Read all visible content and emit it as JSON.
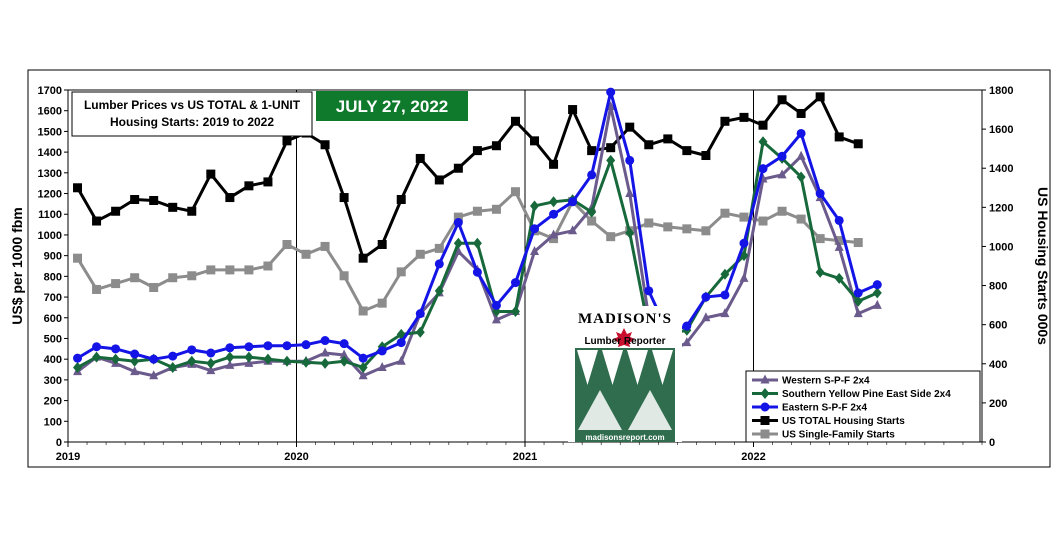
{
  "chart_data": {
    "type": "line",
    "title_lines": [
      "Lumber Prices vs US TOTAL & 1-UNIT",
      "Housing Starts:  2019 to 2022"
    ],
    "date_badge": "JULY 27, 2022",
    "ylabel_left": "US$ per 1000 fbm",
    "ylabel_right": "US Housing  Starts 000s",
    "ylim_left": [
      0,
      1700
    ],
    "ylim_right": [
      0,
      1800
    ],
    "yticks_left": [
      0,
      100,
      200,
      300,
      400,
      500,
      600,
      700,
      800,
      900,
      1000,
      1100,
      1200,
      1300,
      1400,
      1500,
      1600,
      1700
    ],
    "yticks_right": [
      0,
      200,
      400,
      600,
      800,
      1000,
      1200,
      1400,
      1600,
      1800
    ],
    "x_start_year": 2019,
    "x_end_year": 2023,
    "xticks": [
      "2019",
      "2020",
      "2021",
      "2022"
    ],
    "grid": false,
    "legend_position": "bottom-right",
    "series": [
      {
        "name": "Western S-P-F 2x4",
        "axis": "left",
        "color": "#6b5a8c",
        "marker": "triangle",
        "values": [
          340,
          410,
          380,
          340,
          320,
          360,
          375,
          345,
          370,
          380,
          390,
          390,
          390,
          430,
          420,
          320,
          360,
          390,
          620,
          720,
          920,
          830,
          590,
          630,
          920,
          1000,
          1020,
          1130,
          1620,
          1200,
          600,
          430,
          480,
          600,
          620,
          790,
          1270,
          1290,
          1380,
          1180,
          940,
          620,
          660
        ]
      },
      {
        "name": "Southern Yellow Pine East Side 2x4",
        "axis": "left",
        "color": "#17693b",
        "marker": "diamond",
        "values": [
          360,
          410,
          400,
          390,
          400,
          360,
          390,
          380,
          410,
          410,
          400,
          390,
          385,
          380,
          390,
          360,
          460,
          520,
          530,
          730,
          960,
          960,
          630,
          630,
          1140,
          1160,
          1170,
          1110,
          1360,
          1010,
          540,
          520,
          540,
          700,
          810,
          900,
          1450,
          1370,
          1280,
          820,
          790,
          680,
          720
        ]
      },
      {
        "name": "Eastern S-P-F 2x4",
        "axis": "left",
        "color": "#1414e6",
        "marker": "circle",
        "values": [
          405,
          460,
          450,
          425,
          400,
          415,
          445,
          430,
          455,
          460,
          465,
          465,
          470,
          490,
          475,
          405,
          440,
          480,
          620,
          860,
          1060,
          820,
          660,
          770,
          1030,
          1100,
          1160,
          1290,
          1690,
          1360,
          730,
          530,
          560,
          700,
          710,
          960,
          1320,
          1380,
          1490,
          1200,
          1070,
          720,
          760
        ]
      },
      {
        "name": "US TOTAL Housing Starts",
        "axis": "right",
        "color": "#000000",
        "marker": "square",
        "values": [
          1300,
          1130,
          1180,
          1240,
          1235,
          1200,
          1180,
          1370,
          1250,
          1310,
          1330,
          1540,
          1580,
          1520,
          1250,
          940,
          1010,
          1240,
          1450,
          1340,
          1400,
          1490,
          1515,
          1640,
          1540,
          1420,
          1700,
          1490,
          1505,
          1610,
          1520,
          1550,
          1490,
          1465,
          1640,
          1660,
          1620,
          1750,
          1680,
          1765,
          1560,
          1525
        ]
      },
      {
        "name": "US Single-Family Starts",
        "axis": "right",
        "color": "#8c8c8c",
        "marker": "square",
        "values": [
          940,
          780,
          810,
          840,
          790,
          840,
          850,
          880,
          880,
          880,
          900,
          1010,
          960,
          1000,
          850,
          670,
          710,
          870,
          960,
          990,
          1150,
          1180,
          1190,
          1280,
          1080,
          1040,
          1230,
          1130,
          1050,
          1080,
          1120,
          1100,
          1090,
          1080,
          1170,
          1150,
          1130,
          1180,
          1140,
          1040,
          1030,
          1020
        ]
      }
    ]
  },
  "logo": {
    "name": "MADISON'S",
    "subtitle": "Lumber Reporter",
    "url": "madisonsreport.com"
  }
}
